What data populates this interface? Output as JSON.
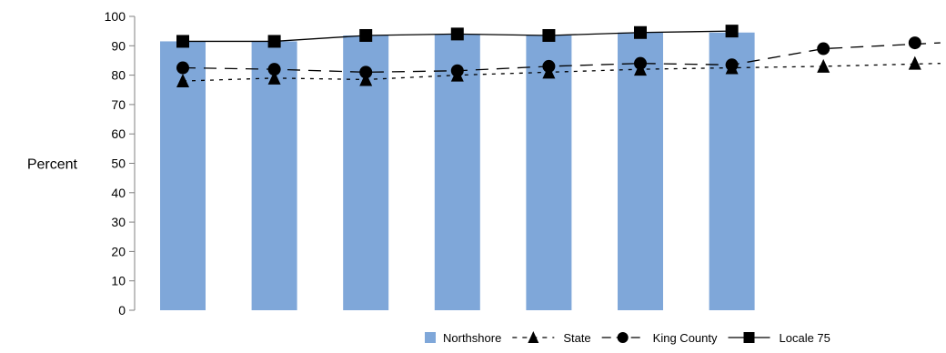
{
  "chart_data": {
    "type": "bar",
    "title": "",
    "xlabel": "",
    "ylabel": "Percent",
    "ylim": [
      0,
      100
    ],
    "yticks": [
      0,
      10,
      20,
      30,
      40,
      50,
      60,
      70,
      80,
      90,
      100
    ],
    "categories": [
      "",
      "",
      "",
      "",
      "",
      "",
      "",
      "",
      ""
    ],
    "grid": false,
    "legend_position": "bottom-right",
    "series": [
      {
        "name": "Northshore",
        "kind": "bar",
        "color": "#7fa7d9",
        "values": [
          91.5,
          91.5,
          93.5,
          94,
          93.5,
          94.5,
          94.5,
          null,
          null
        ]
      },
      {
        "name": "State",
        "kind": "line",
        "dash": "dotted",
        "marker": "triangle",
        "color": "#000000",
        "values": [
          78,
          79,
          78.5,
          80,
          81,
          82,
          82.5,
          83,
          84
        ]
      },
      {
        "name": "King County",
        "kind": "line",
        "dash": "dashed",
        "marker": "circle",
        "color": "#000000",
        "values": [
          82.5,
          82,
          81,
          81.5,
          83,
          84,
          83.5,
          89,
          91
        ]
      },
      {
        "name": "Locale 75",
        "kind": "line",
        "dash": "solid",
        "marker": "square",
        "color": "#000000",
        "values": [
          91.5,
          91.5,
          93.5,
          94,
          93.5,
          94.5,
          95,
          null,
          null
        ]
      }
    ]
  }
}
